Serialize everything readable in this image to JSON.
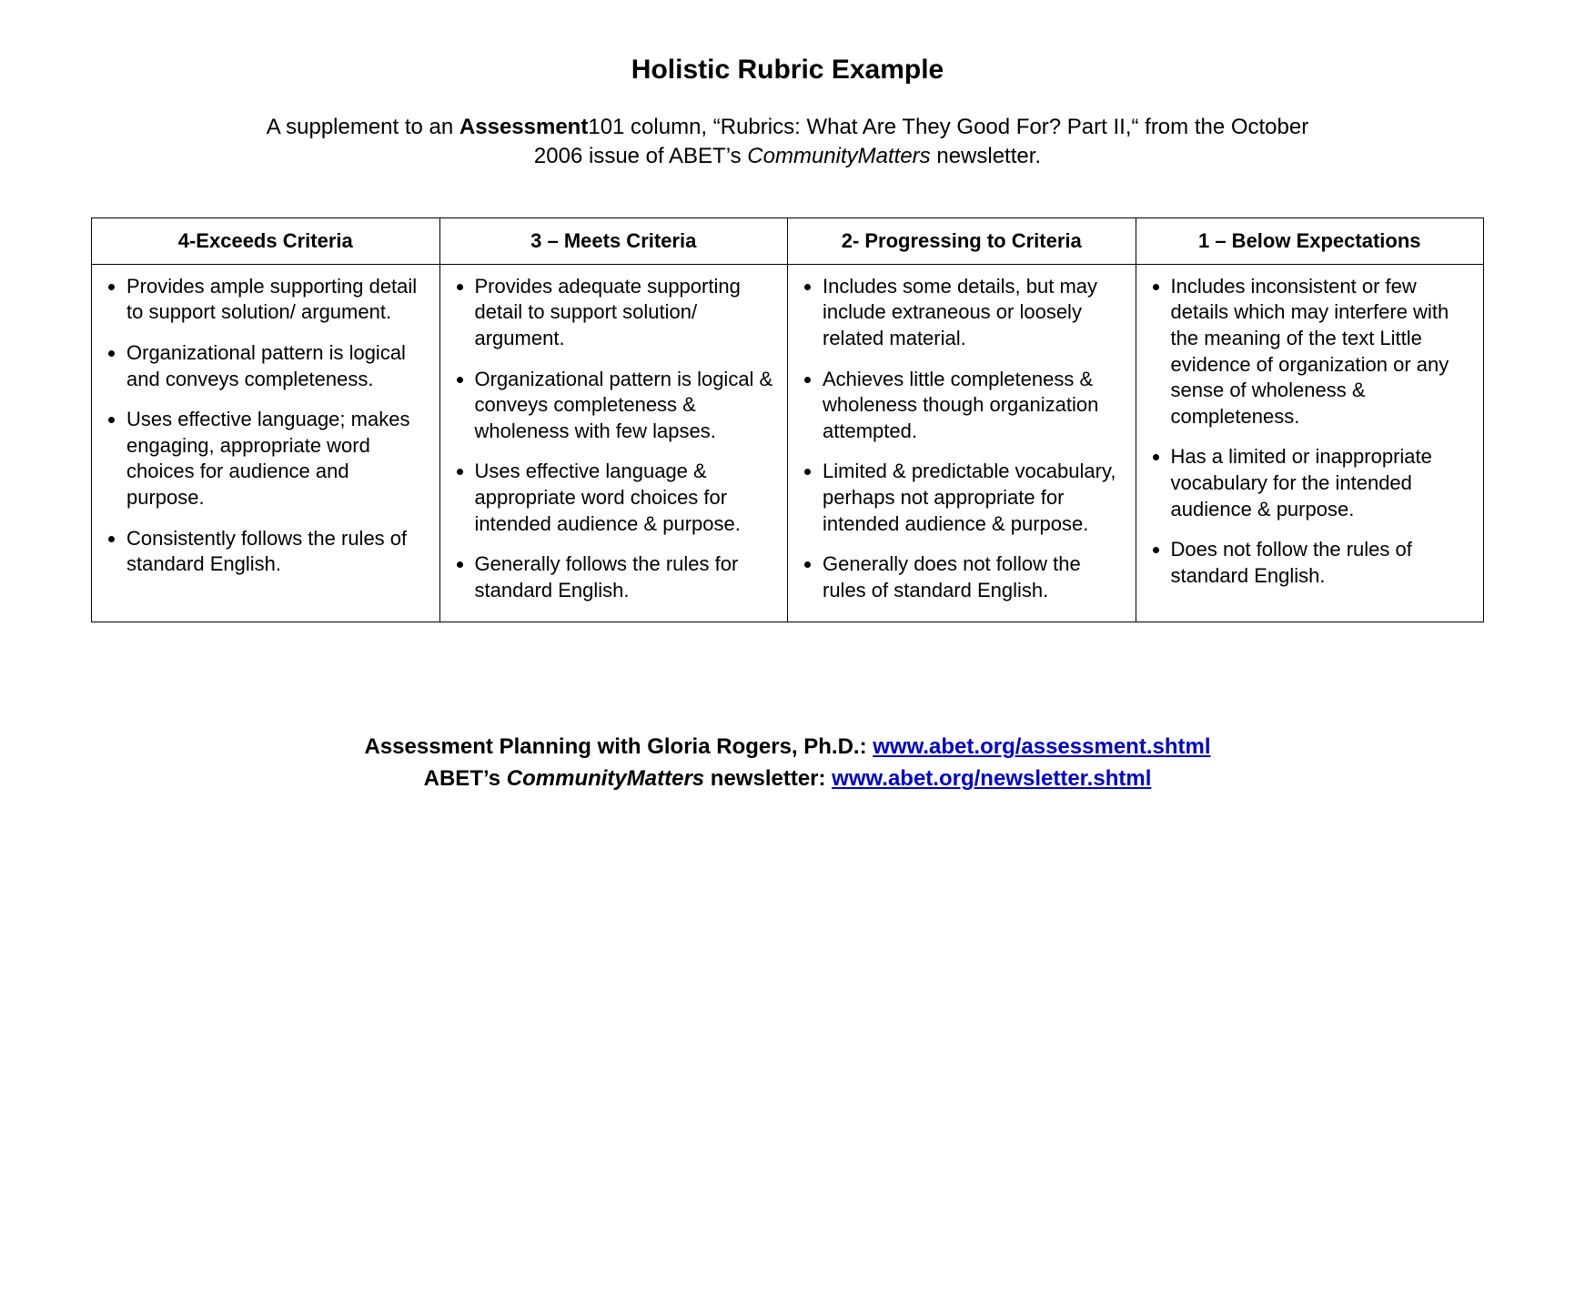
{
  "title": "Holistic Rubric Example",
  "subtitle": {
    "pre": "A supplement to an ",
    "bold": "Assessment",
    "after_bold": "101 column, “Rubrics: What Are They Good For? Part II,“ from the October 2006 issue of ABET’s ",
    "italic": "CommunityMatters",
    "post": " newsletter."
  },
  "table": {
    "headers": [
      "4-Exceeds Criteria",
      "3 – Meets Criteria",
      "2- Progressing to Criteria",
      "1 – Below Expectations"
    ],
    "columns": [
      [
        "Provides ample supporting detail to support solution/ argument.",
        "Organizational pattern is logical and conveys completeness.",
        "Uses effective language; makes engaging, appropriate word choices for audience and purpose.",
        "Consistently follows the rules of standard English."
      ],
      [
        "Provides adequate supporting detail to support solution/ argument.",
        "Organizational pattern is logical & conveys completeness & wholeness with few lapses.",
        "Uses effective language & appropriate word choices for intended audience & purpose.",
        "Generally follows the rules for standard English."
      ],
      [
        "Includes some details, but may include extraneous or loosely related material.",
        "Achieves little completeness & wholeness though organization attempted.",
        "Limited & predictable vocabulary, perhaps not appropriate for intended audience & purpose.",
        "Generally does not follow the rules of standard English."
      ],
      [
        "Includes inconsistent or few details which may interfere with the meaning of the text Little evidence of organization or any sense of wholeness & completeness.",
        "Has a limited or inappropriate vocabulary for the intended audience & purpose.",
        "Does not follow the rules of standard English."
      ]
    ]
  },
  "footer": {
    "line1_pre": "Assessment Planning with Gloria Rogers, Ph.D.: ",
    "line1_link": "www.abet.org/assessment.shtml",
    "line2_pre": "ABET’s ",
    "line2_italic": "CommunityMatters",
    "line2_mid": " newsletter: ",
    "line2_link": "www.abet.org/newsletter.shtml"
  },
  "style": {
    "background_color": "#ffffff",
    "text_color": "#000000",
    "border_color": "#000000",
    "link_color": "#0000cc",
    "title_fontsize": 30,
    "body_fontsize": 22,
    "footer_fontsize": 24,
    "header_fontsize": 22,
    "font_family": "Arial"
  }
}
